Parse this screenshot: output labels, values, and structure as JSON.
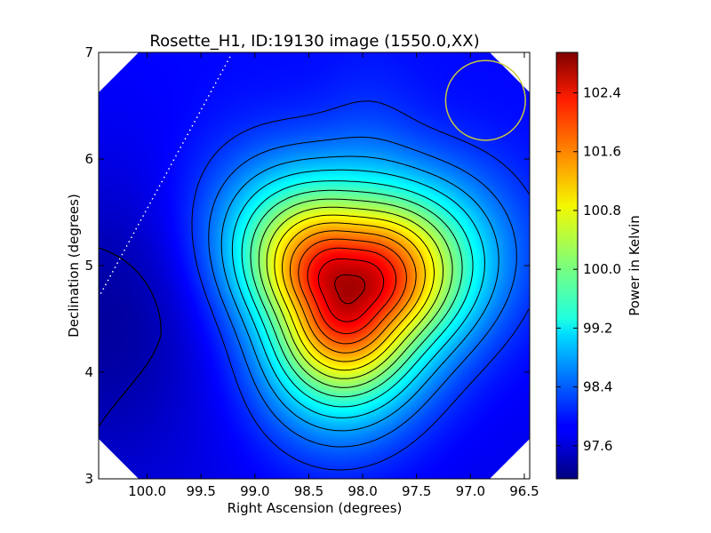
{
  "chart_data": {
    "type": "heatmap",
    "title": "Rosette_H1, ID:19130 image (1550.0,XX)",
    "xlabel": "Right Ascension (degrees)",
    "ylabel": "Declination (degrees)",
    "xlim": [
      100.45,
      96.45
    ],
    "ylim": [
      3,
      7
    ],
    "x_ticks": [
      {
        "value": 100.0,
        "label": "100.0"
      },
      {
        "value": 99.5,
        "label": "99.5"
      },
      {
        "value": 99.0,
        "label": "99.0"
      },
      {
        "value": 98.5,
        "label": "98.5"
      },
      {
        "value": 98.0,
        "label": "98.0"
      },
      {
        "value": 97.5,
        "label": "97.5"
      },
      {
        "value": 97.0,
        "label": "97.0"
      },
      {
        "value": 96.5,
        "label": "96.5"
      }
    ],
    "y_ticks": [
      {
        "value": 3,
        "label": "3"
      },
      {
        "value": 4,
        "label": "4"
      },
      {
        "value": 5,
        "label": "5"
      },
      {
        "value": 6,
        "label": "6"
      },
      {
        "value": 7,
        "label": "7"
      }
    ],
    "colorbar": {
      "label": "Power in Kelvin",
      "colormap": "jet",
      "range": [
        97.15,
        102.95
      ],
      "ticks": [
        {
          "value": 97.6,
          "label": "97.6"
        },
        {
          "value": 98.4,
          "label": "98.4"
        },
        {
          "value": 99.2,
          "label": "99.2"
        },
        {
          "value": 100.0,
          "label": "100.0"
        },
        {
          "value": 100.8,
          "label": "100.8"
        },
        {
          "value": 101.6,
          "label": "101.6"
        },
        {
          "value": 102.4,
          "label": "102.4"
        }
      ]
    },
    "peak": {
      "ra": 98.13,
      "dec": 4.78,
      "value": 102.8
    },
    "background_value": 97.9,
    "contour_count": 15,
    "beam_circle": {
      "ra": 96.86,
      "dec": 6.55,
      "radius_deg": 0.37,
      "color": "#c8c83c"
    },
    "galactic_plane_line": [
      {
        "ra": 99.23,
        "dec": 6.96
      },
      {
        "ra": 100.44,
        "dec": 4.72
      }
    ],
    "grid": false
  }
}
